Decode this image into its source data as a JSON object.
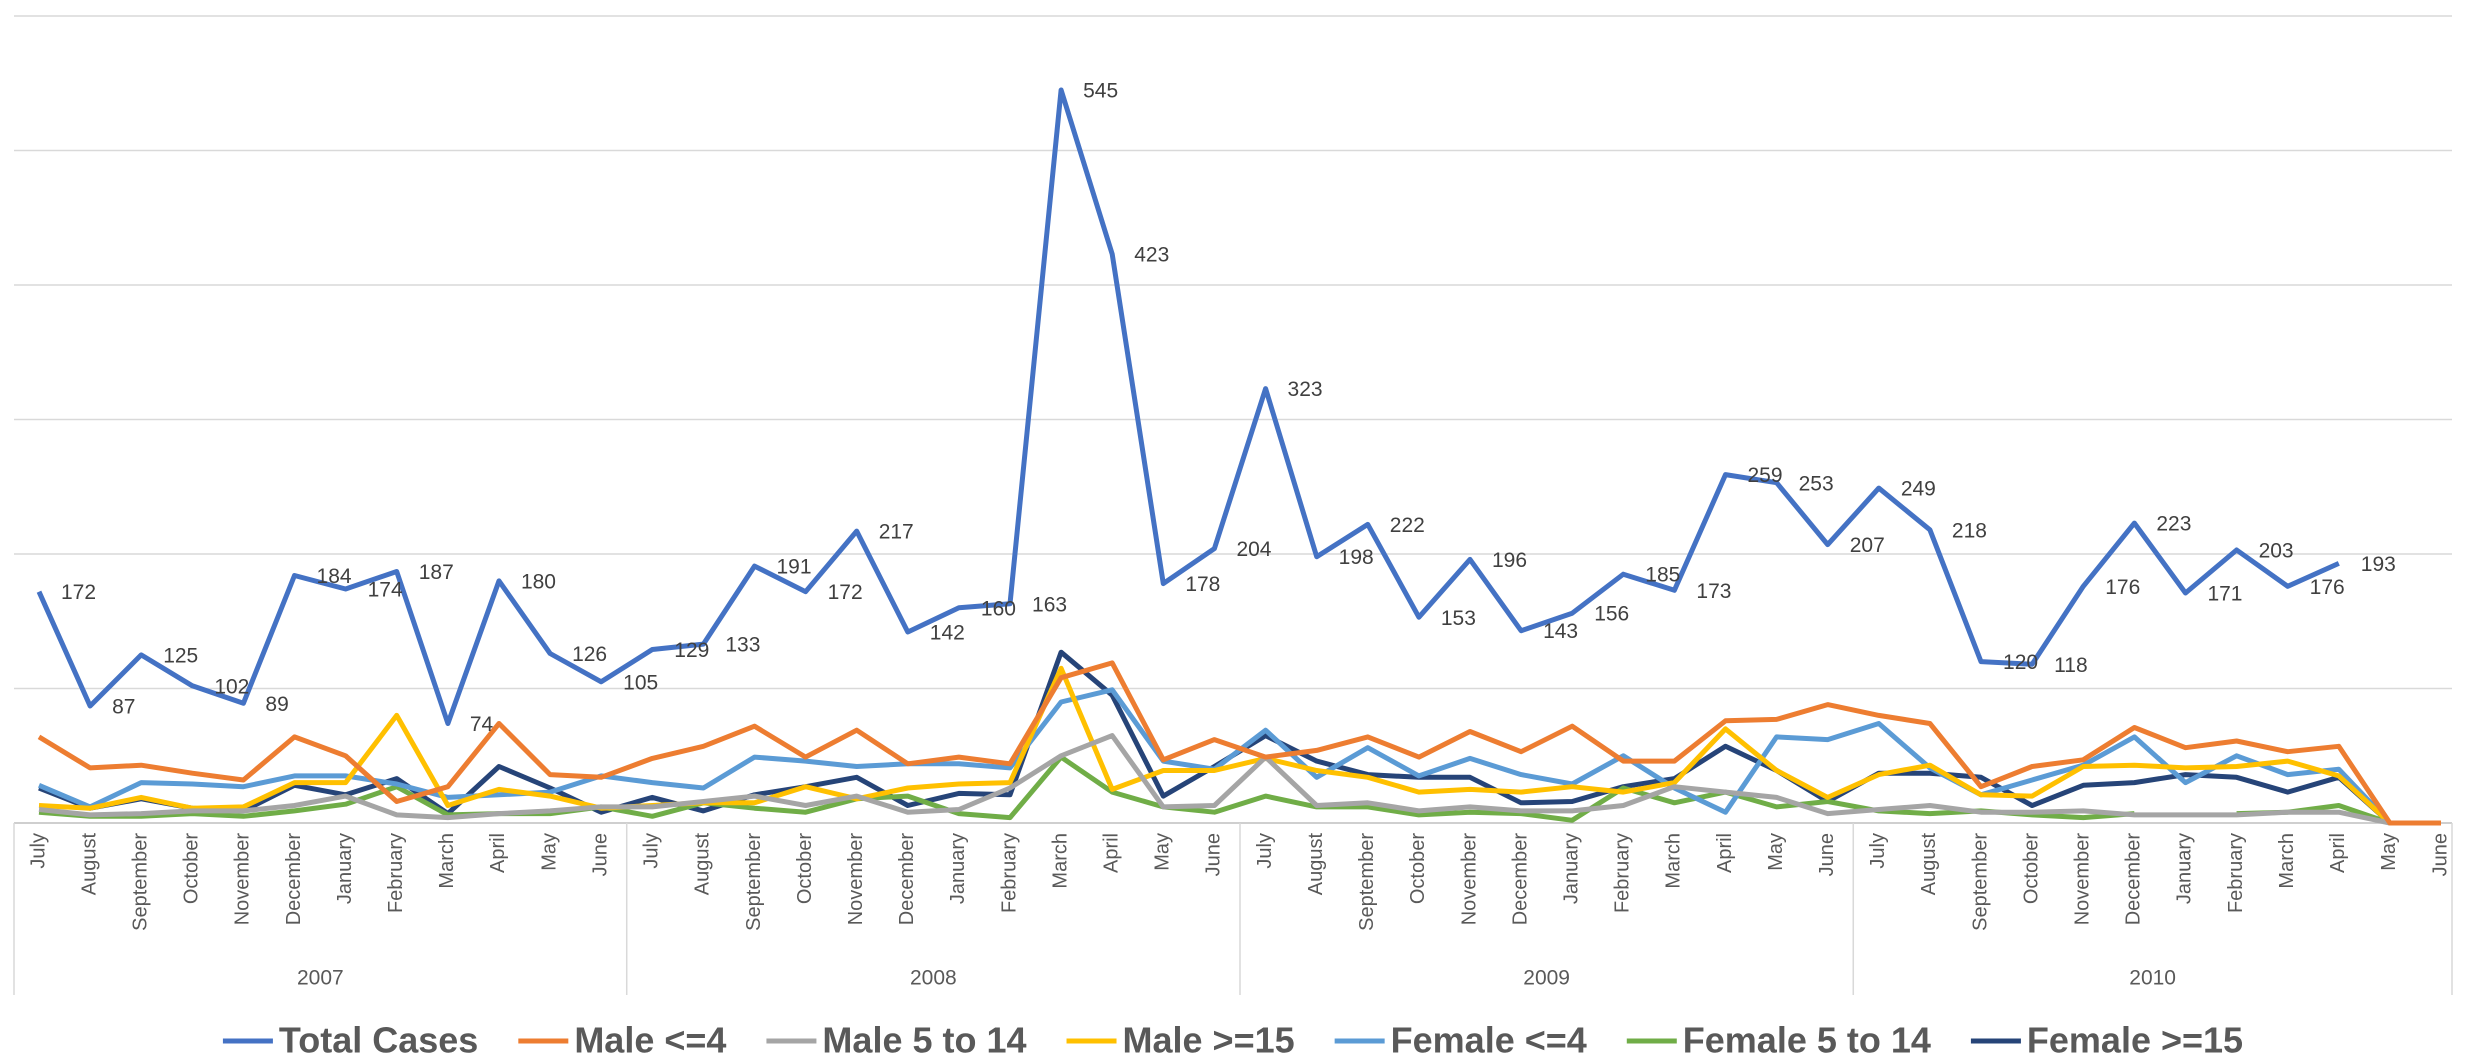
{
  "chart_data": {
    "type": "line",
    "categories": [
      "July",
      "August",
      "September",
      "October",
      "November",
      "December",
      "January",
      "February",
      "March",
      "April",
      "May",
      "June",
      "July",
      "August",
      "September",
      "October",
      "November",
      "December",
      "January",
      "February",
      "March",
      "April",
      "May",
      "June",
      "July",
      "August",
      "September",
      "October",
      "November",
      "December",
      "January",
      "February",
      "March",
      "April",
      "May",
      "June",
      "July",
      "August",
      "September",
      "October",
      "November",
      "December",
      "January",
      "February",
      "March",
      "April",
      "May",
      "June"
    ],
    "groups": [
      "2007",
      "2008",
      "2009",
      "2010"
    ],
    "ylim": [
      0,
      600
    ],
    "yticks": [
      0,
      100,
      200,
      300,
      400,
      500,
      600
    ],
    "grid": true,
    "legend": "bottom",
    "series": [
      {
        "name": "Total Cases",
        "color": "#4472c4",
        "labels": true,
        "values": [
          172,
          87,
          125,
          102,
          89,
          184,
          174,
          187,
          74,
          180,
          126,
          105,
          129,
          133,
          191,
          172,
          217,
          142,
          160,
          163,
          545,
          423,
          178,
          204,
          323,
          198,
          222,
          153,
          196,
          143,
          156,
          185,
          173,
          259,
          253,
          207,
          249,
          218,
          120,
          118,
          176,
          223,
          171,
          203,
          176,
          193,
          null,
          null
        ]
      },
      {
        "name": "Male <=4",
        "color": "#ed7d31",
        "values": [
          64,
          41,
          43,
          37,
          32,
          64,
          50,
          16,
          27,
          74,
          36,
          34,
          48,
          57,
          72,
          49,
          69,
          44,
          49,
          44,
          108,
          119,
          47,
          62,
          49,
          54,
          64,
          49,
          68,
          53,
          72,
          46,
          46,
          76,
          77,
          88,
          80,
          74,
          27,
          42,
          47,
          71,
          56,
          61,
          53,
          57,
          0,
          0
        ]
      },
      {
        "name": "Male 5 to 14",
        "color": "#a5a5a5",
        "values": [
          10,
          6,
          7,
          9,
          9,
          13,
          20,
          6,
          4,
          7,
          9,
          12,
          12,
          16,
          20,
          13,
          20,
          8,
          10,
          26,
          50,
          65,
          12,
          13,
          49,
          13,
          15,
          9,
          12,
          9,
          9,
          13,
          27,
          23,
          19,
          7,
          10,
          13,
          8,
          8,
          9,
          6,
          6,
          6,
          8,
          8,
          0,
          0
        ]
      },
      {
        "name": "Male >=15",
        "color": "#ffc000",
        "values": [
          13,
          11,
          19,
          11,
          12,
          30,
          30,
          80,
          13,
          25,
          20,
          11,
          13,
          15,
          15,
          27,
          18,
          26,
          29,
          30,
          115,
          25,
          39,
          39,
          48,
          39,
          34,
          23,
          25,
          23,
          27,
          23,
          30,
          70,
          39,
          19,
          36,
          43,
          21,
          20,
          42,
          43,
          41,
          42,
          46,
          35,
          0,
          0
        ]
      },
      {
        "name": "Female <=4",
        "color": "#5b9bd5",
        "values": [
          28,
          12,
          30,
          29,
          27,
          35,
          35,
          29,
          19,
          21,
          23,
          35,
          30,
          26,
          49,
          46,
          42,
          44,
          44,
          41,
          90,
          99,
          46,
          40,
          69,
          34,
          56,
          35,
          48,
          36,
          29,
          50,
          26,
          8,
          64,
          62,
          74,
          41,
          21,
          32,
          43,
          64,
          30,
          50,
          36,
          40,
          0,
          0
        ]
      },
      {
        "name": "Female 5 to 14",
        "color": "#70ad47",
        "values": [
          8,
          5,
          5,
          7,
          5,
          9,
          14,
          27,
          6,
          7,
          7,
          12,
          5,
          15,
          11,
          8,
          18,
          20,
          7,
          4,
          49,
          23,
          12,
          8,
          20,
          12,
          12,
          6,
          8,
          7,
          2,
          26,
          15,
          23,
          12,
          16,
          9,
          7,
          9,
          6,
          4,
          7,
          null,
          7,
          8,
          13,
          0,
          0
        ]
      },
      {
        "name": "Female >=15",
        "color": "#264478",
        "values": [
          26,
          11,
          18,
          11,
          9,
          28,
          21,
          33,
          7,
          42,
          26,
          8,
          19,
          9,
          21,
          27,
          34,
          13,
          22,
          21,
          127,
          95,
          20,
          42,
          65,
          46,
          36,
          34,
          34,
          15,
          16,
          27,
          33,
          57,
          39,
          16,
          37,
          37,
          34,
          13,
          28,
          30,
          36,
          34,
          23,
          34,
          0,
          0
        ]
      }
    ]
  }
}
